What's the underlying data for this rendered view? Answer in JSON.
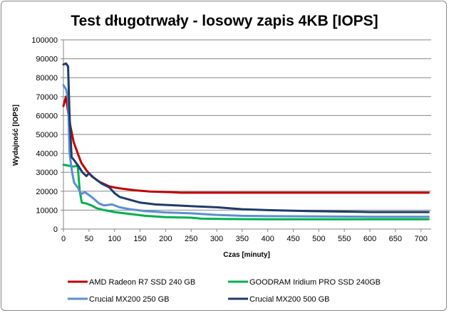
{
  "chart_data": {
    "type": "line",
    "title": "Test długotrwały - losowy zapis 4KB [IOPS]",
    "xlabel": "Czas [minuty]",
    "ylabel": "Wydajność [IOPS]",
    "xlim": [
      0,
      720
    ],
    "ylim": [
      0,
      100000
    ],
    "x_ticks": [
      0,
      50,
      100,
      150,
      200,
      250,
      300,
      350,
      400,
      450,
      500,
      550,
      600,
      650,
      700
    ],
    "y_ticks": [
      0,
      10000,
      20000,
      30000,
      40000,
      50000,
      60000,
      70000,
      80000,
      90000,
      100000
    ],
    "grid": "horizontal",
    "legend_position": "bottom",
    "series": [
      {
        "name": "AMD Radeon  R7 SSD 240 GB",
        "color": "#c00000",
        "points": [
          [
            0,
            65000
          ],
          [
            5,
            70000
          ],
          [
            10,
            60000
          ],
          [
            14,
            54000
          ],
          [
            20,
            46000
          ],
          [
            28,
            40000
          ],
          [
            35,
            35000
          ],
          [
            45,
            31000
          ],
          [
            55,
            28000
          ],
          [
            70,
            25000
          ],
          [
            90,
            22500
          ],
          [
            110,
            21500
          ],
          [
            140,
            20500
          ],
          [
            170,
            19800
          ],
          [
            210,
            19500
          ],
          [
            230,
            19200
          ],
          [
            300,
            19200
          ],
          [
            400,
            19200
          ],
          [
            500,
            19200
          ],
          [
            600,
            19200
          ],
          [
            715,
            19200
          ]
        ]
      },
      {
        "name": "GOODRAM Iridium PRO SSD 240GB",
        "color": "#00b050",
        "points": [
          [
            0,
            34000
          ],
          [
            10,
            33500
          ],
          [
            20,
            33000
          ],
          [
            28,
            33500
          ],
          [
            32,
            20000
          ],
          [
            36,
            14000
          ],
          [
            45,
            13500
          ],
          [
            55,
            12500
          ],
          [
            65,
            11000
          ],
          [
            80,
            10000
          ],
          [
            100,
            9000
          ],
          [
            130,
            8000
          ],
          [
            160,
            7000
          ],
          [
            200,
            6300
          ],
          [
            250,
            6000
          ],
          [
            270,
            5500
          ],
          [
            320,
            5300
          ],
          [
            400,
            5200
          ],
          [
            500,
            5200
          ],
          [
            600,
            5200
          ],
          [
            715,
            5200
          ]
        ]
      },
      {
        "name": "Crucial MX200 250 GB",
        "color": "#5a8fd0",
        "points": [
          [
            0,
            76000
          ],
          [
            5,
            74000
          ],
          [
            9,
            69000
          ],
          [
            12,
            40000
          ],
          [
            17,
            30000
          ],
          [
            21,
            24500
          ],
          [
            28,
            22000
          ],
          [
            35,
            18500
          ],
          [
            42,
            19500
          ],
          [
            55,
            17000
          ],
          [
            70,
            13500
          ],
          [
            80,
            12500
          ],
          [
            95,
            13000
          ],
          [
            110,
            11500
          ],
          [
            130,
            10500
          ],
          [
            160,
            9500
          ],
          [
            200,
            8800
          ],
          [
            250,
            8300
          ],
          [
            300,
            7500
          ],
          [
            350,
            7000
          ],
          [
            400,
            6800
          ],
          [
            500,
            6700
          ],
          [
            600,
            6500
          ],
          [
            715,
            6500
          ]
        ]
      },
      {
        "name": "Crucial MX200 500 GB",
        "color": "#1f3b6a",
        "points": [
          [
            0,
            87000
          ],
          [
            5,
            87500
          ],
          [
            9,
            86000
          ],
          [
            12,
            60000
          ],
          [
            16,
            38000
          ],
          [
            22,
            36000
          ],
          [
            30,
            33000
          ],
          [
            37,
            30000
          ],
          [
            45,
            28000
          ],
          [
            50,
            29500
          ],
          [
            60,
            27000
          ],
          [
            75,
            24000
          ],
          [
            90,
            22000
          ],
          [
            100,
            19000
          ],
          [
            110,
            17000
          ],
          [
            130,
            15500
          ],
          [
            150,
            14000
          ],
          [
            180,
            13000
          ],
          [
            220,
            12500
          ],
          [
            260,
            12000
          ],
          [
            300,
            11500
          ],
          [
            350,
            10500
          ],
          [
            400,
            10000
          ],
          [
            480,
            9500
          ],
          [
            600,
            9000
          ],
          [
            715,
            9000
          ]
        ]
      }
    ]
  }
}
